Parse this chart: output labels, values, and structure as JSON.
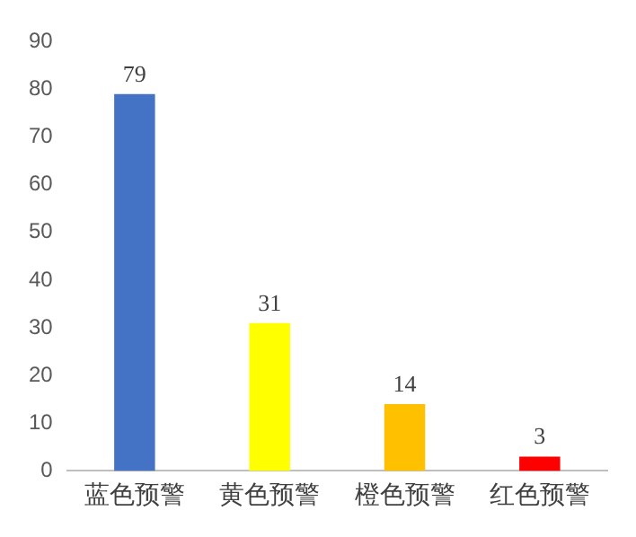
{
  "chart_data": {
    "type": "bar",
    "categories": [
      "蓝色预警",
      "黄色预警",
      "橙色预警",
      "红色预警"
    ],
    "values": [
      79,
      31,
      14,
      3
    ],
    "colors": [
      "#4472c4",
      "#ffff00",
      "#ffc000",
      "#ff0000"
    ],
    "ylim": [
      0,
      90
    ],
    "yticks": [
      0,
      10,
      20,
      30,
      40,
      50,
      60,
      70,
      80,
      90
    ],
    "data_labels": true,
    "grid": false,
    "legend": false
  }
}
